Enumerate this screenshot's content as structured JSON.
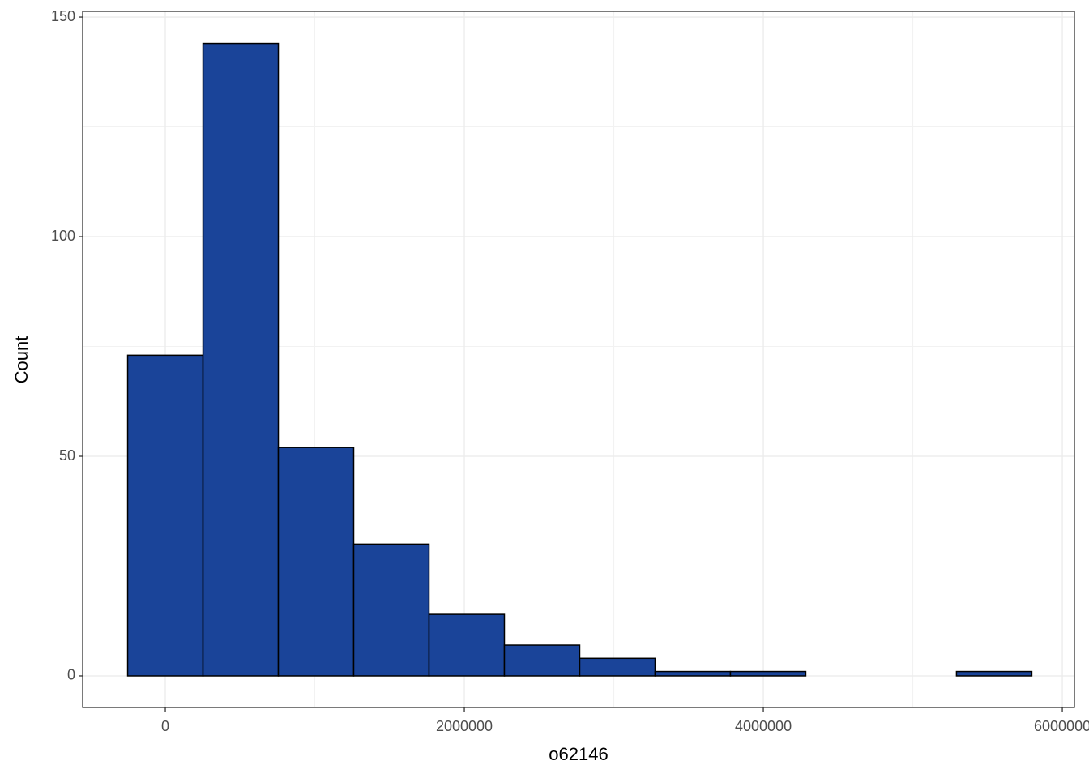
{
  "chart_data": {
    "type": "histogram",
    "x_label": "o62146",
    "y_label": "Count",
    "bins": [
      -252000,
      252000,
      756000,
      1260000,
      1764000,
      2268000,
      2772000,
      3276000,
      3780000,
      4284000,
      4788000,
      5292000,
      5796000
    ],
    "values": [
      73,
      144,
      52,
      30,
      14,
      7,
      4,
      1,
      1,
      0,
      0,
      1
    ],
    "color": "#1a4499",
    "xlim": [
      -553000,
      6081000
    ],
    "ylim": [
      -7.2,
      151.3
    ],
    "xticks": [
      0,
      2000000,
      4000000,
      6000000
    ],
    "yticks": [
      0,
      50,
      100,
      150
    ],
    "grid": true
  }
}
